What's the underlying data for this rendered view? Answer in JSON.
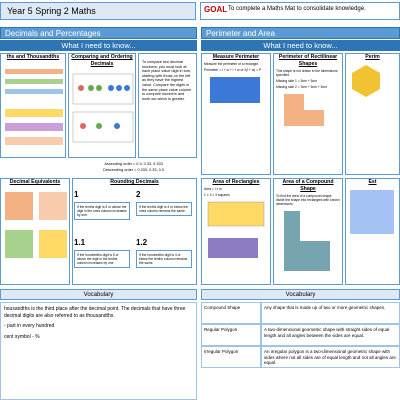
{
  "header": {
    "title": "Year 5 Spring 2 Maths",
    "goal": "GOAL",
    "goal_text": "To complete a Maths Mat to consolidate knowledge."
  },
  "left": {
    "title": "Decimals and Percentages",
    "need": "What I need to know...",
    "panels": [
      {
        "title": "ths and Thousandths"
      },
      {
        "title": "Comparing and Ordering Decimals"
      },
      {
        "text": "To compare two decimal numbers, you must look at each place value digit in turn, starting with those on the left as they have the highest value. Compare the digits in the same place value column to compare numbers and work out which is greater."
      },
      {
        "title": "Decimal Equivalents"
      },
      {
        "title": "Rounding Decimals"
      }
    ],
    "ascending": "Ascending order = 0.3, 0.33, 0.333",
    "descending": "Descending order = 0.333, 0.33, 0.3",
    "rounding": [
      {
        "label": "1",
        "text": "If the tenths digit is 5 or above the digit in the ones column increases by one."
      },
      {
        "label": "2",
        "text": "If the tenths digit is 4 or below the ones column remains the same."
      },
      {
        "label": "1.1",
        "text": "If the hundredths digit is 5 or above the digit in the tenths column increases by one."
      },
      {
        "label": "1.2",
        "text": "If the hundredths digit is 4 or below the tenths column remains the same."
      }
    ]
  },
  "right": {
    "title": "Perimeter and Area",
    "need": "What I need to know...",
    "panels": [
      {
        "title": "Measure Perimeter",
        "lines": [
          "Measure the perimeter of a rectangle.",
          "Perimeter = l + w + l + w or 2(l + w) = P"
        ]
      },
      {
        "title": "Perimeter of Rectilinear Shapes",
        "lines": [
          "This shape is not drawn to the dimensions specified.",
          "Missing side 1 = 5cm + 5cm",
          "Missing side 2 = 3cm + 5cm + 5cm"
        ]
      },
      {
        "title": "Perim"
      },
      {
        "title": "Area of Rectangles",
        "lines": [
          "Area = l × w",
          "1 × 3 = 3 squares"
        ]
      },
      {
        "title": "Area of a Compound Shape",
        "lines": [
          "To find the area of a compound shape, divide the shape into rectangles with known dimensions."
        ]
      },
      {
        "title": "Est"
      }
    ]
  },
  "vocab_left": {
    "title": "Vocabulary",
    "lines": [
      "housandths is the third place after the decimal point. The decimals that have three decimal digits are also referred to as thousandths.",
      "- part in every hundred",
      "cent symbol - %"
    ]
  },
  "vocab_right": {
    "title": "Vocabulary",
    "rows": [
      [
        "Compound Shape",
        "Any shape that is made up of two or more geometric shapes."
      ],
      [
        "Regular Polygon",
        "A two-dimensional geometric shape with straight sides of equal length and all angles between the sides are equal."
      ],
      [
        "Irregular Polygon",
        "An irregular polygon is a two-dimensional geometric shape with sides where not all sides are of equal length and not all angles are equal."
      ]
    ]
  }
}
